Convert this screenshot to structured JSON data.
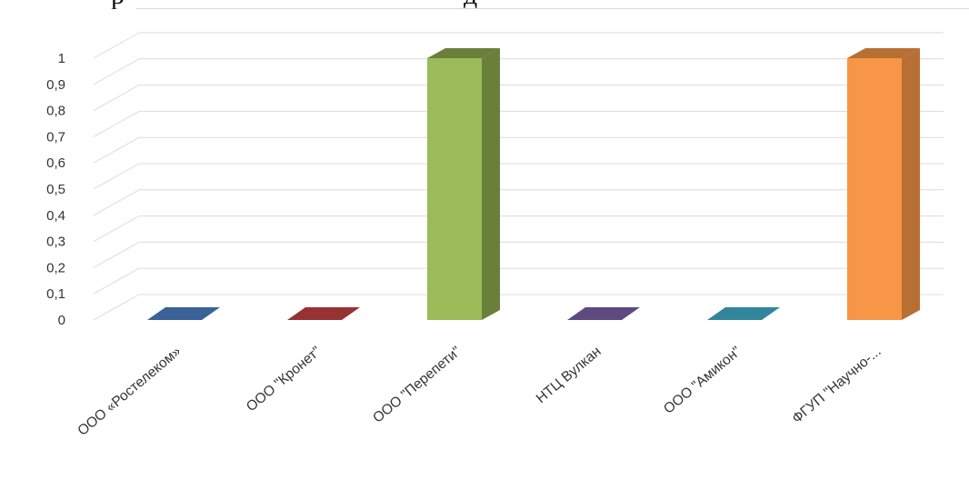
{
  "chart_data": {
    "type": "bar",
    "style": "3d-column",
    "categories": [
      "ООО «Ростелеком»",
      "ООО \"Кронет\"",
      "ООО \"Перепети\"",
      "НТЦ Вулкан",
      "ООО \"Амикон\"",
      "ФГУП \"Научно-..."
    ],
    "values": [
      0,
      0,
      1,
      0,
      0,
      1
    ],
    "colors": [
      "#3a6299",
      "#963234",
      "#9bbb59",
      "#5e4a7e",
      "#31869b",
      "#f79646"
    ],
    "side_colors": [
      "#2c4a73",
      "#702526",
      "#6a7f3a",
      "#463859",
      "#23606f",
      "#b86f33"
    ],
    "yticks": [
      "0",
      "0,1",
      "0,2",
      "0,3",
      "0,4",
      "0,5",
      "0,6",
      "0,7",
      "0,8",
      "0,9",
      "1"
    ],
    "ylim": [
      0,
      1
    ],
    "grid": true,
    "title": "",
    "xlabel": "",
    "ylabel": ""
  },
  "page": {
    "top_text_left": "р",
    "top_text_right": "д"
  }
}
